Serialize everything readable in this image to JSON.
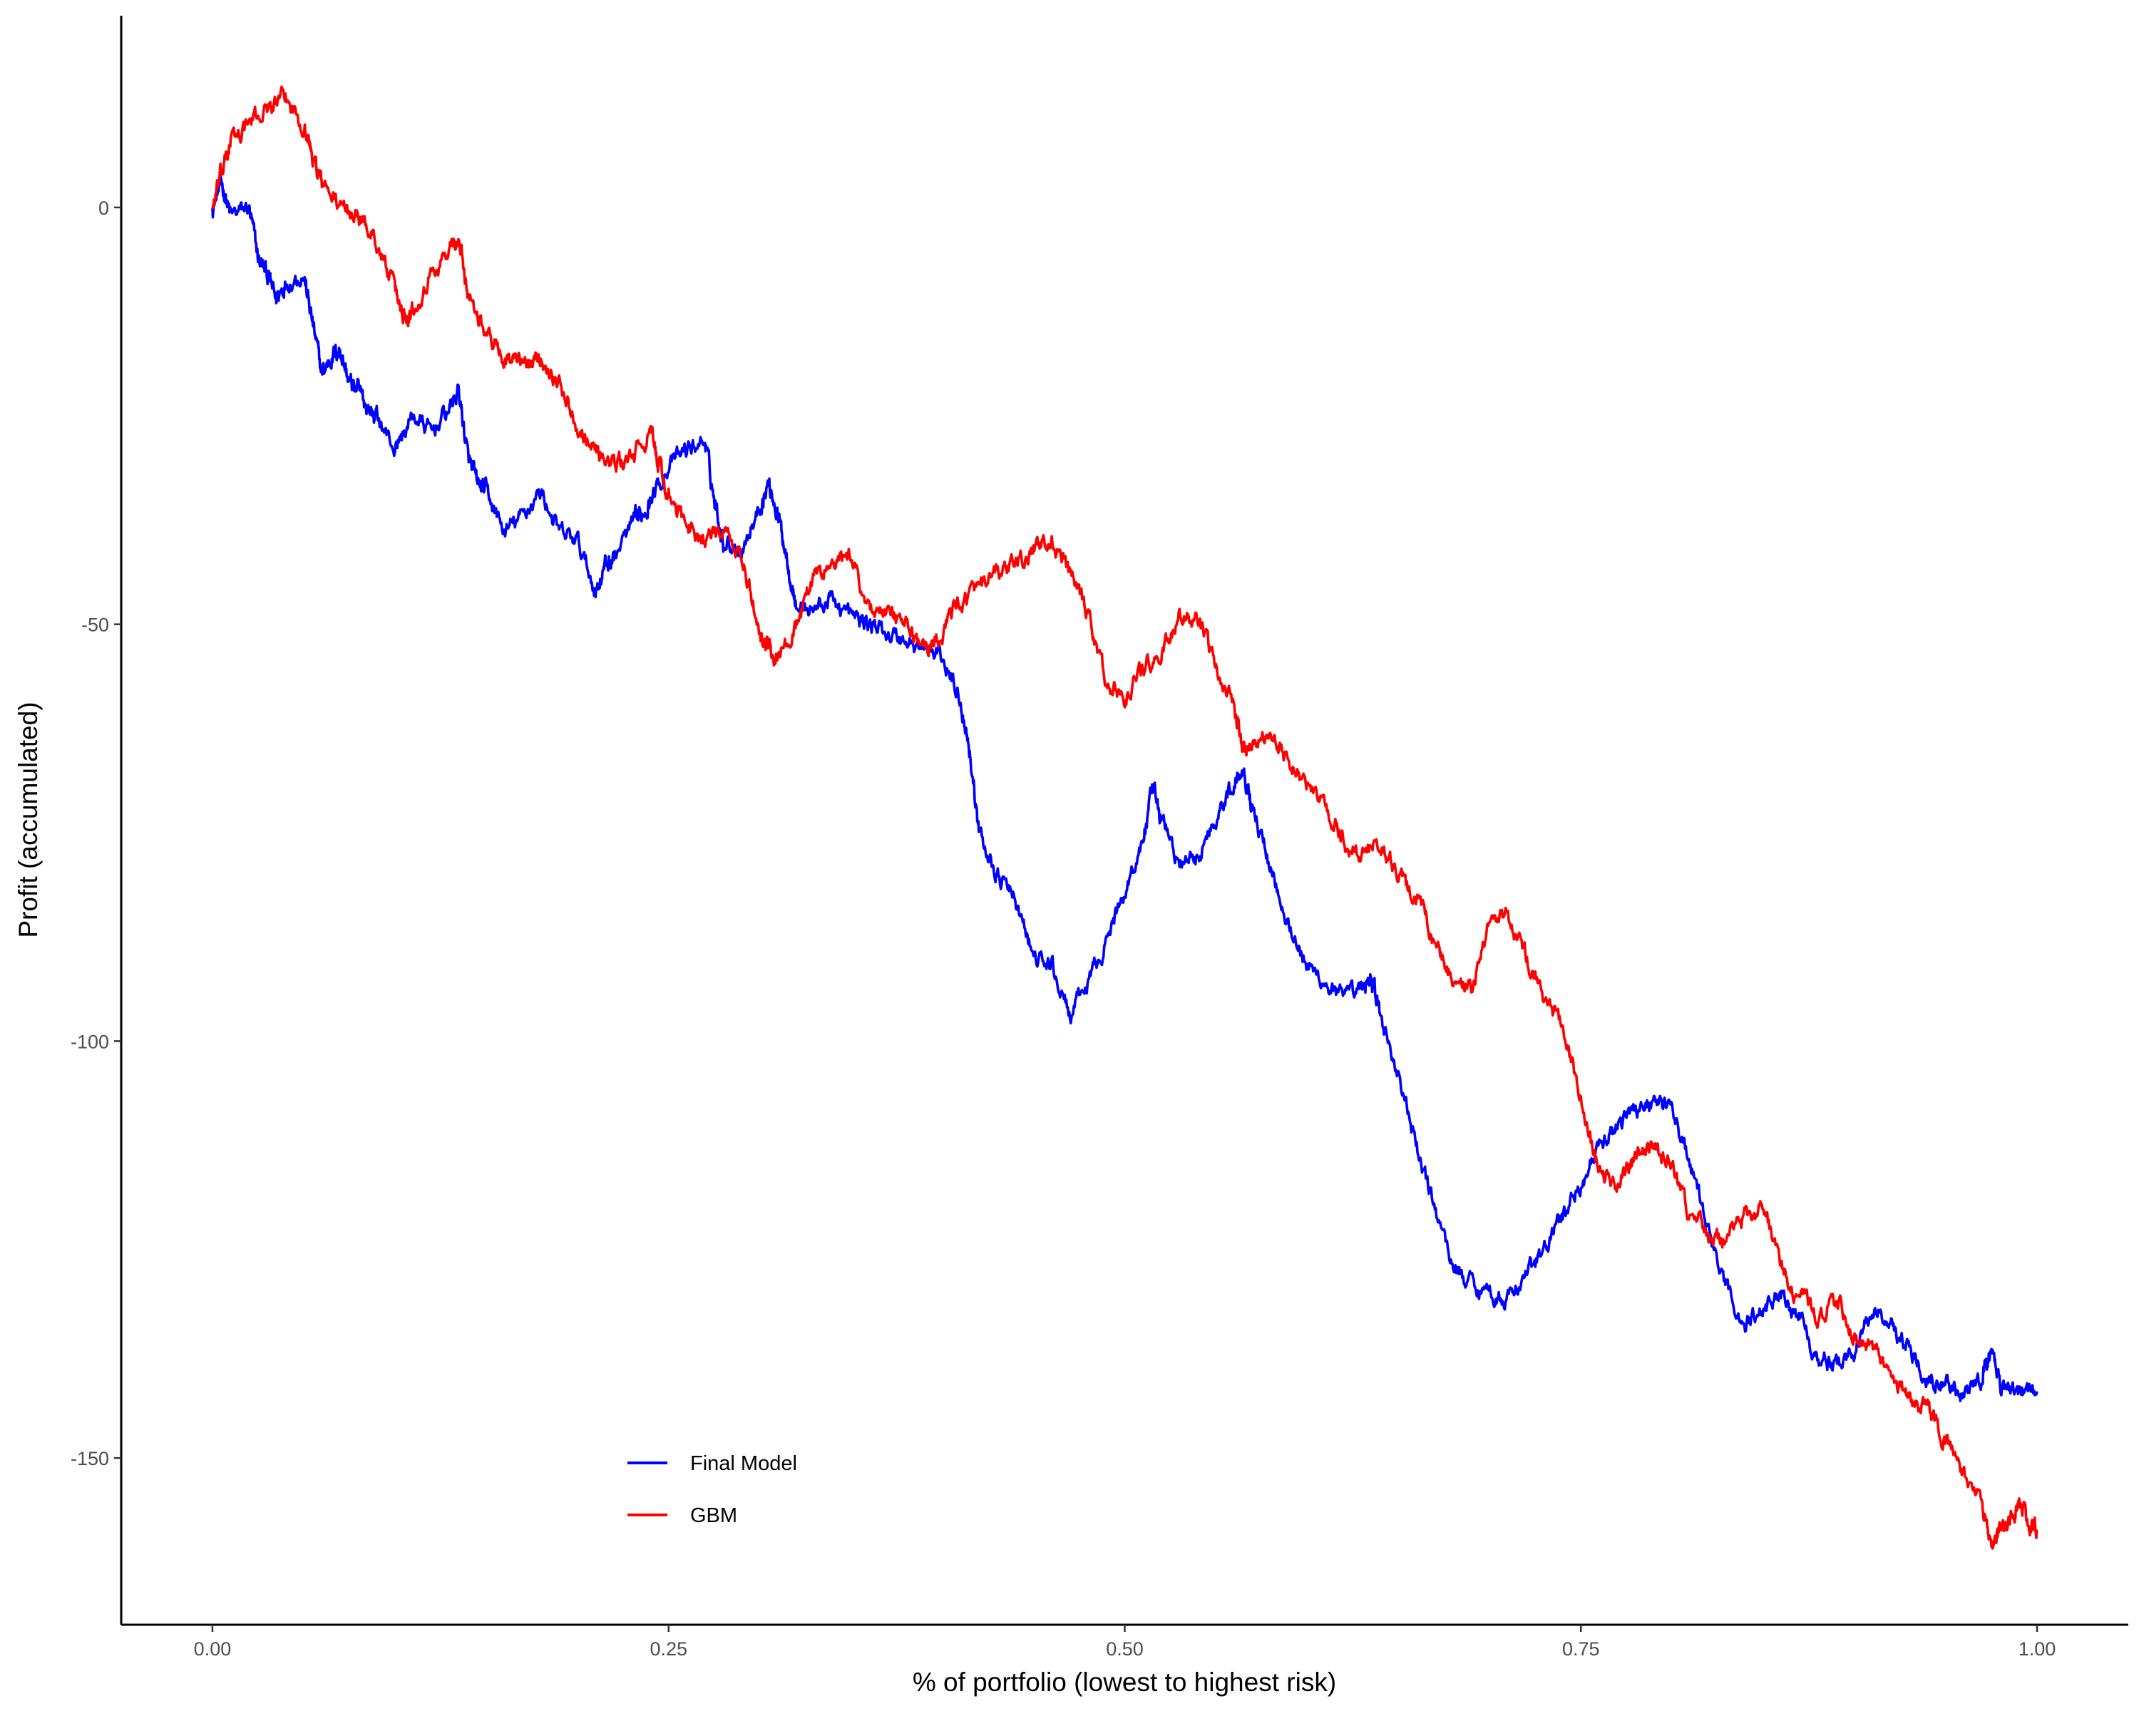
{
  "chart_data": {
    "type": "line",
    "title": "",
    "xlabel": "% of portfolio (lowest to highest risk)",
    "ylabel": "Profit (accumulated)",
    "xlim": [
      -0.05,
      1.05
    ],
    "ylim": [
      -170,
      23
    ],
    "x_ticks": [
      0.0,
      0.25,
      0.5,
      0.75,
      1.0
    ],
    "x_tick_labels": [
      "0.00",
      "0.25",
      "0.50",
      "0.75",
      "1.00"
    ],
    "y_ticks": [
      0,
      -50,
      -100,
      -150
    ],
    "y_tick_labels": [
      "0",
      "-50",
      "-100",
      "-150"
    ],
    "grid": false,
    "legend": {
      "placement": "bottom-center",
      "entries": [
        "Final Model",
        "GBM"
      ]
    },
    "series": [
      {
        "name": "Final Model",
        "color": "#0000FF",
        "x": [
          0.0,
          0.005,
          0.01,
          0.02,
          0.025,
          0.03,
          0.035,
          0.04,
          0.05,
          0.055,
          0.06,
          0.065,
          0.07,
          0.075,
          0.08,
          0.085,
          0.09,
          0.1,
          0.11,
          0.12,
          0.13,
          0.135,
          0.14,
          0.145,
          0.15,
          0.16,
          0.17,
          0.18,
          0.19,
          0.2,
          0.21,
          0.215,
          0.22,
          0.23,
          0.235,
          0.24,
          0.25,
          0.26,
          0.27,
          0.275,
          0.28,
          0.29,
          0.3,
          0.305,
          0.31,
          0.315,
          0.32,
          0.33,
          0.34,
          0.35,
          0.36,
          0.37,
          0.38,
          0.39,
          0.4,
          0.41,
          0.415,
          0.42,
          0.43,
          0.44,
          0.45,
          0.46,
          0.47,
          0.48,
          0.49,
          0.5,
          0.51,
          0.515,
          0.52,
          0.53,
          0.54,
          0.55,
          0.56,
          0.565,
          0.57,
          0.58,
          0.59,
          0.6,
          0.61,
          0.62,
          0.63,
          0.635,
          0.64,
          0.65,
          0.66,
          0.67,
          0.68,
          0.69,
          0.7,
          0.71,
          0.72,
          0.73,
          0.74,
          0.75,
          0.76,
          0.77,
          0.78,
          0.79,
          0.8,
          0.81,
          0.82,
          0.83,
          0.84,
          0.85,
          0.86,
          0.87,
          0.88,
          0.89,
          0.9,
          0.91,
          0.92,
          0.93,
          0.94,
          0.95,
          0.96,
          0.97,
          0.975,
          0.98,
          0.99,
          1.0
        ],
        "values": [
          0,
          3,
          -1,
          0,
          -6,
          -8,
          -11,
          -9,
          -8,
          -14,
          -20,
          -18,
          -17,
          -21,
          -22,
          -24,
          -25,
          -29,
          -25,
          -27,
          -24,
          -22,
          -30,
          -33,
          -34,
          -39,
          -37,
          -34,
          -39,
          -40,
          -46,
          -43,
          -42,
          -38,
          -37,
          -35,
          -31,
          -29,
          -28,
          -35,
          -40,
          -41,
          -36,
          -33,
          -37,
          -42,
          -48,
          -48,
          -47,
          -49,
          -50,
          -51,
          -52,
          -53,
          -54,
          -59,
          -65,
          -75,
          -80,
          -83,
          -90,
          -91,
          -97,
          -93,
          -88,
          -82,
          -76,
          -70,
          -73,
          -79,
          -78,
          -73,
          -69,
          -67,
          -72,
          -79,
          -86,
          -91,
          -93,
          -95,
          -94,
          -92,
          -97,
          -104,
          -113,
          -120,
          -127,
          -129,
          -130,
          -131,
          -128,
          -125,
          -121,
          -117,
          -113,
          -110,
          -108,
          -107,
          -108,
          -115,
          -123,
          -130,
          -134,
          -132,
          -130,
          -133,
          -138,
          -139,
          -137,
          -132,
          -134,
          -137,
          -140,
          -141,
          -143,
          -140,
          -137,
          -141,
          -142,
          -142
        ]
      },
      {
        "name": "GBM",
        "color": "#FF0000",
        "x": [
          0.0,
          0.005,
          0.01,
          0.02,
          0.03,
          0.04,
          0.05,
          0.055,
          0.06,
          0.07,
          0.08,
          0.09,
          0.1,
          0.105,
          0.11,
          0.12,
          0.13,
          0.135,
          0.14,
          0.15,
          0.16,
          0.17,
          0.18,
          0.19,
          0.2,
          0.21,
          0.22,
          0.23,
          0.24,
          0.245,
          0.25,
          0.26,
          0.27,
          0.28,
          0.29,
          0.3,
          0.305,
          0.31,
          0.32,
          0.33,
          0.34,
          0.35,
          0.36,
          0.37,
          0.38,
          0.39,
          0.4,
          0.41,
          0.42,
          0.43,
          0.44,
          0.45,
          0.46,
          0.47,
          0.48,
          0.49,
          0.5,
          0.51,
          0.52,
          0.53,
          0.54,
          0.55,
          0.56,
          0.565,
          0.57,
          0.58,
          0.59,
          0.6,
          0.61,
          0.62,
          0.63,
          0.64,
          0.65,
          0.66,
          0.67,
          0.68,
          0.69,
          0.7,
          0.71,
          0.72,
          0.73,
          0.74,
          0.75,
          0.76,
          0.77,
          0.78,
          0.79,
          0.8,
          0.81,
          0.82,
          0.83,
          0.84,
          0.85,
          0.86,
          0.87,
          0.88,
          0.89,
          0.9,
          0.91,
          0.92,
          0.93,
          0.94,
          0.95,
          0.96,
          0.97,
          0.975,
          0.98,
          0.985,
          0.99,
          0.995,
          1.0
        ],
        "values": [
          0,
          4,
          8,
          10,
          12,
          13,
          10,
          6,
          3,
          0,
          -1,
          -4,
          -10,
          -13,
          -12,
          -8,
          -5,
          -4,
          -10,
          -15,
          -18,
          -19,
          -18,
          -21,
          -26,
          -29,
          -31,
          -30,
          -27,
          -31,
          -35,
          -38,
          -40,
          -39,
          -42,
          -51,
          -53,
          -54,
          -50,
          -44,
          -43,
          -42,
          -48,
          -49,
          -50,
          -53,
          -51,
          -47,
          -46,
          -44,
          -43,
          -41,
          -40,
          -44,
          -49,
          -57,
          -59,
          -55,
          -54,
          -49,
          -50,
          -55,
          -60,
          -65,
          -64,
          -63,
          -67,
          -69,
          -72,
          -76,
          -78,
          -76,
          -80,
          -83,
          -88,
          -93,
          -94,
          -86,
          -85,
          -90,
          -95,
          -98,
          -107,
          -116,
          -117,
          -114,
          -113,
          -115,
          -121,
          -123,
          -124,
          -121,
          -120,
          -127,
          -131,
          -133,
          -131,
          -135,
          -137,
          -140,
          -143,
          -144,
          -148,
          -152,
          -156,
          -160,
          -159,
          -158,
          -156,
          -158,
          -159
        ]
      }
    ]
  }
}
